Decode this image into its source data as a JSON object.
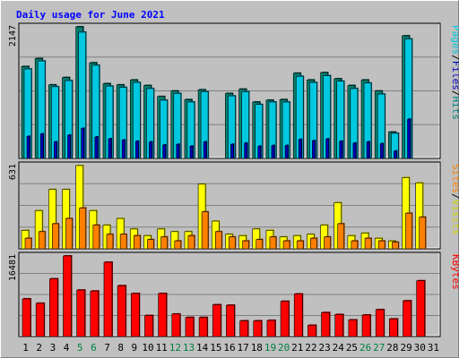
{
  "title": "Daily usage for June 2021",
  "colors": {
    "pages": "#00c8e0",
    "pages_shadow": "#00806f",
    "files": "#0000c0",
    "hits": "#00c0c0",
    "visits": "#ffff00",
    "visits_shadow": "#a0a000",
    "sites": "#ff8000",
    "sites_shadow": "#a05000",
    "kbytes": "#ff0000",
    "kbytes_shadow": "#800000",
    "weekend": "#008040",
    "title": "#0000ff"
  },
  "panel_labels": {
    "top": [
      {
        "text": "Pages",
        "color": "#00c8e0"
      },
      {
        "text": "/",
        "color": "#000000"
      },
      {
        "text": "Files",
        "color": "#0000c0"
      },
      {
        "text": "/",
        "color": "#000000"
      },
      {
        "text": "Hits",
        "color": "#008080"
      }
    ],
    "middle": [
      {
        "text": "Sites",
        "color": "#ff8000"
      },
      {
        "text": "/",
        "color": "#000000"
      },
      {
        "text": "Visits",
        "color": "#d0d000"
      }
    ],
    "bottom": [
      {
        "text": "KBytes",
        "color": "#ff0000"
      }
    ]
  },
  "chart_data": {
    "type": "bar",
    "title": "Daily usage for June 2021",
    "categories": [
      "1",
      "2",
      "3",
      "4",
      "5",
      "6",
      "7",
      "8",
      "9",
      "10",
      "11",
      "12",
      "13",
      "14",
      "15",
      "16",
      "17",
      "18",
      "19",
      "20",
      "21",
      "22",
      "23",
      "24",
      "25",
      "26",
      "27",
      "28",
      "29",
      "30",
      "31"
    ],
    "weekend_days": [
      "5",
      "6",
      "12",
      "13",
      "19",
      "20",
      "26",
      "27"
    ],
    "panels": [
      {
        "name": "hits_files_pages",
        "ymax_label": "2147",
        "ylim": [
          0,
          2147
        ],
        "series": [
          {
            "name": "Hits",
            "values": [
              1500,
              1630,
              1200,
              1320,
              2147,
              1560,
              1220,
              1200,
              1280,
              1190,
              1010,
              1100,
              960,
              1120,
              0,
              1060,
              1130,
              920,
              950,
              960,
              1390,
              1280,
              1400,
              1300,
              1190,
              1280,
              1100,
              430,
              2000,
              0,
              0
            ]
          },
          {
            "name": "Files",
            "values": [
              1460,
              1590,
              1170,
              1270,
              2060,
              1520,
              1180,
              1160,
              1240,
              1140,
              950,
              1060,
              920,
              1090,
              0,
              1020,
              1090,
              880,
              920,
              920,
              1340,
              1240,
              1350,
              1260,
              1140,
              1230,
              1050,
              410,
              1950,
              0,
              0
            ]
          },
          {
            "name": "Pages",
            "values": [
              360,
              400,
              270,
              380,
              490,
              350,
              320,
              300,
              280,
              270,
              220,
              230,
              200,
              270,
              0,
              230,
              250,
              200,
              210,
              210,
              310,
              290,
              320,
              280,
              250,
              270,
              240,
              120,
              640,
              0,
              0
            ]
          }
        ]
      },
      {
        "name": "visits_sites",
        "ymax_label": "631",
        "ylim": [
          0,
          631
        ],
        "series": [
          {
            "name": "Visits",
            "values": [
              140,
              290,
              450,
              450,
              631,
              290,
              180,
              230,
              150,
              100,
              150,
              130,
              130,
              490,
              210,
              110,
              100,
              150,
              140,
              90,
              100,
              110,
              180,
              350,
              100,
              120,
              80,
              60,
              540,
              500,
              0
            ]
          },
          {
            "name": "Sites",
            "values": [
              80,
              130,
              190,
              230,
              310,
              180,
              110,
              110,
              100,
              70,
              90,
              60,
              100,
              280,
              130,
              90,
              60,
              70,
              90,
              60,
              60,
              80,
              90,
              190,
              60,
              80,
              60,
              50,
              270,
              240,
              0
            ]
          }
        ]
      },
      {
        "name": "kbytes",
        "ymax_label": "16481",
        "ylim": [
          0,
          16481
        ],
        "series": [
          {
            "name": "KBytes",
            "values": [
              7700,
              6800,
              11800,
              16481,
              9500,
              9300,
              15200,
              10400,
              8800,
              4300,
              8800,
              4600,
              3900,
              3900,
              6500,
              6400,
              3200,
              3200,
              3300,
              7200,
              8700,
              2300,
              4900,
              4500,
              3400,
              4400,
              5500,
              3600,
              7300,
              11400,
              0
            ]
          }
        ]
      }
    ]
  }
}
